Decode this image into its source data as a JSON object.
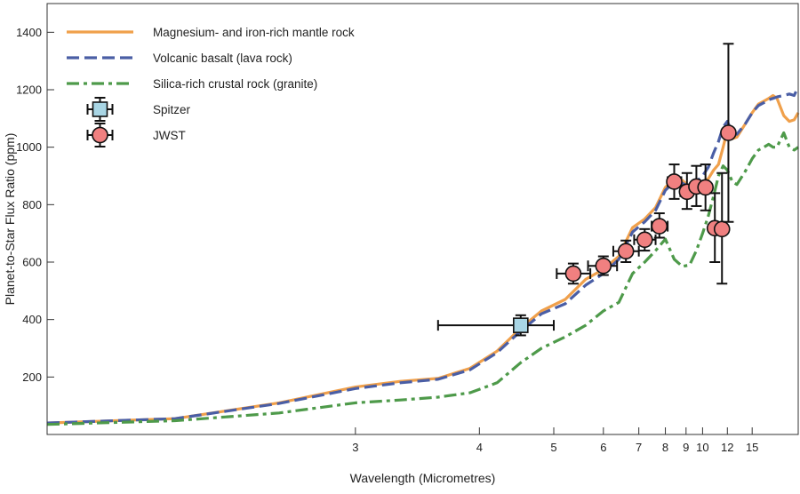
{
  "chart_data": {
    "type": "line",
    "title": "",
    "xlabel": "Wavelength (Micrometres)",
    "ylabel": "Planet-to-Star Flux Ratio (ppm)",
    "x_scale": "reciprocal",
    "xlim": [
      1.85,
      28
    ],
    "ylim": [
      0,
      1500
    ],
    "x_ticks": [
      3,
      4,
      5,
      6,
      7,
      8,
      9,
      10,
      12,
      15
    ],
    "y_ticks": [
      200,
      400,
      600,
      800,
      1000,
      1200,
      1400
    ],
    "grid": false,
    "legend_position": "top-left",
    "series": [
      {
        "name": "Magnesium- and iron-rich mantle rock",
        "color": "#f0a04b",
        "style": "solid",
        "x": [
          1.85,
          2.2,
          2.6,
          3.0,
          3.3,
          3.6,
          3.9,
          4.2,
          4.5,
          4.8,
          5.2,
          5.6,
          6.0,
          6.4,
          6.8,
          7.2,
          7.6,
          8.0,
          8.4,
          8.8,
          9.2,
          9.6,
          10.0,
          10.4,
          10.8,
          11.2,
          11.6,
          12.0,
          12.5,
          13.0,
          14.0,
          15.0,
          16.0,
          17.0,
          18.0,
          19.0,
          20.0,
          22.0,
          24.0,
          26.0,
          28.0
        ],
        "y": [
          40,
          55,
          110,
          165,
          185,
          195,
          230,
          290,
          370,
          430,
          470,
          540,
          575,
          620,
          720,
          750,
          790,
          860,
          890,
          885,
          860,
          870,
          880,
          890,
          920,
          940,
          1000,
          1060,
          1030,
          1035,
          1080,
          1120,
          1150,
          1160,
          1170,
          1180,
          1170,
          1110,
          1090,
          1095,
          1120
        ]
      },
      {
        "name": "Volcanic basalt (lava rock)",
        "color": "#4a5ea5",
        "style": "dashed",
        "x": [
          1.85,
          2.2,
          2.6,
          3.0,
          3.3,
          3.6,
          3.9,
          4.2,
          4.5,
          4.8,
          5.2,
          5.6,
          6.0,
          6.4,
          6.8,
          7.2,
          7.6,
          8.0,
          8.4,
          8.8,
          9.2,
          9.6,
          10.0,
          10.4,
          10.8,
          11.2,
          11.6,
          12.0,
          12.5,
          13.0,
          14.0,
          15.0,
          16.0,
          17.0,
          18.0,
          19.0,
          20.0,
          22.0,
          24.0,
          26.0,
          28.0
        ],
        "y": [
          40,
          55,
          108,
          160,
          180,
          192,
          225,
          285,
          360,
          420,
          455,
          520,
          560,
          610,
          705,
          740,
          780,
          850,
          880,
          875,
          860,
          880,
          900,
          930,
          980,
          1020,
          1070,
          1090,
          1050,
          1045,
          1080,
          1120,
          1145,
          1155,
          1165,
          1170,
          1175,
          1180,
          1185,
          1180,
          1210
        ]
      },
      {
        "name": "Silica-rich crustal rock (granite)",
        "color": "#4e9a4a",
        "style": "dashdot",
        "x": [
          1.85,
          2.2,
          2.6,
          3.0,
          3.3,
          3.6,
          3.9,
          4.2,
          4.5,
          4.8,
          5.2,
          5.6,
          6.0,
          6.4,
          6.8,
          7.2,
          7.6,
          8.0,
          8.4,
          8.8,
          9.2,
          9.6,
          10.0,
          10.4,
          10.8,
          11.2,
          11.6,
          12.0,
          12.5,
          13.0,
          14.0,
          15.0,
          16.0,
          17.0,
          18.0,
          19.0,
          20.0,
          22.0,
          24.0,
          26.0,
          28.0
        ],
        "y": [
          35,
          48,
          75,
          110,
          120,
          130,
          145,
          180,
          250,
          300,
          340,
          380,
          430,
          460,
          560,
          600,
          640,
          680,
          610,
          585,
          590,
          640,
          700,
          760,
          830,
          900,
          935,
          920,
          880,
          870,
          915,
          960,
          990,
          1000,
          1010,
          1000,
          1000,
          1050,
          1000,
          990,
          1000
        ]
      }
    ],
    "measurements": [
      {
        "name": "Spitzer",
        "marker": "square",
        "color": "#a9d6e5",
        "points": [
          {
            "x": 4.5,
            "y": 380,
            "xerr": [
              3.6,
              5.0
            ],
            "yerr": [
              345,
              415
            ]
          }
        ]
      },
      {
        "name": "JWST",
        "marker": "circle",
        "color": "#f08080",
        "points": [
          {
            "x": 5.35,
            "y": 560,
            "xerr": [
              5.05,
              5.7
            ],
            "yerr": [
              525,
              595
            ]
          },
          {
            "x": 6.0,
            "y": 587,
            "xerr": [
              5.65,
              6.35
            ],
            "yerr": [
              555,
              620
            ]
          },
          {
            "x": 6.6,
            "y": 638,
            "xerr": [
              6.25,
              7.0
            ],
            "yerr": [
              600,
              675
            ]
          },
          {
            "x": 7.2,
            "y": 678,
            "xerr": [
              6.85,
              7.6
            ],
            "yerr": [
              640,
              715
            ]
          },
          {
            "x": 7.75,
            "y": 725,
            "xerr": [
              7.45,
              8.1
            ],
            "yerr": [
              685,
              770
            ]
          },
          {
            "x": 8.4,
            "y": 880,
            "xerr": [
              8.1,
              8.75
            ],
            "yerr": [
              820,
              940
            ]
          },
          {
            "x": 9.05,
            "y": 845,
            "xerr": [
              8.7,
              9.35
            ],
            "yerr": [
              785,
              910
            ]
          },
          {
            "x": 9.6,
            "y": 863,
            "xerr": [
              9.3,
              9.95
            ],
            "yerr": [
              795,
              935
            ]
          },
          {
            "x": 10.2,
            "y": 860,
            "xerr": [
              9.9,
              10.55
            ],
            "yerr": [
              780,
              940
            ]
          },
          {
            "x": 10.9,
            "y": 718,
            "xerr": [
              10.55,
              11.3
            ],
            "yerr": [
              600,
              840
            ]
          },
          {
            "x": 11.5,
            "y": 715,
            "xerr": [
              11.15,
              11.9
            ],
            "yerr": [
              525,
              910
            ]
          },
          {
            "x": 12.1,
            "y": 1050,
            "xerr": [
              11.75,
              12.5
            ],
            "yerr": [
              740,
              1360
            ]
          }
        ]
      }
    ],
    "legend": [
      {
        "label": "Magnesium- and iron-rich mantle rock",
        "kind": "line",
        "color": "#f0a04b",
        "style": "solid"
      },
      {
        "label": "Volcanic basalt (lava rock)",
        "kind": "line",
        "color": "#4a5ea5",
        "style": "dashed"
      },
      {
        "label": "Silica-rich crustal rock (granite)",
        "kind": "line",
        "color": "#4e9a4a",
        "style": "dashdot"
      },
      {
        "label": "Spitzer",
        "kind": "marker",
        "marker": "square",
        "color": "#a9d6e5"
      },
      {
        "label": "JWST",
        "kind": "marker",
        "marker": "circle",
        "color": "#f08080"
      }
    ]
  }
}
